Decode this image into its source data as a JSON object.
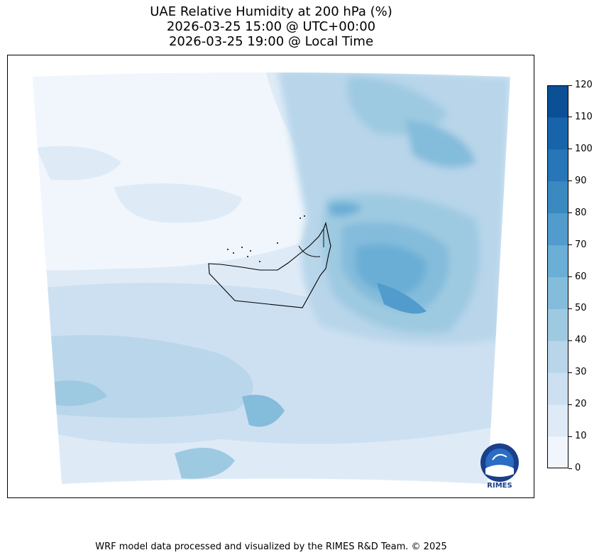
{
  "title": {
    "line1": "UAE Relative Humidity at 200 hPa (%)",
    "line2": "2026-03-25 15:00 @ UTC+00:00",
    "line3": "2026-03-25 19:00 @ Local Time"
  },
  "colorbar": {
    "ticks": [
      "0",
      "10",
      "20",
      "30",
      "40",
      "50",
      "60",
      "70",
      "80",
      "90",
      "100",
      "110",
      "120"
    ],
    "colors": [
      "#f0f6fc",
      "#deebf7",
      "#cde0f1",
      "#b8d5ea",
      "#9ecae1",
      "#84bcdb",
      "#6baed6",
      "#519ccc",
      "#3a8ac1",
      "#2676b8",
      "#1764ab",
      "#0b4f94",
      "#08306b"
    ]
  },
  "logo": {
    "text": "RIMES"
  },
  "footer": {
    "text": "WRF model data processed and visualized by the RIMES R&D Team. © 2025"
  }
}
